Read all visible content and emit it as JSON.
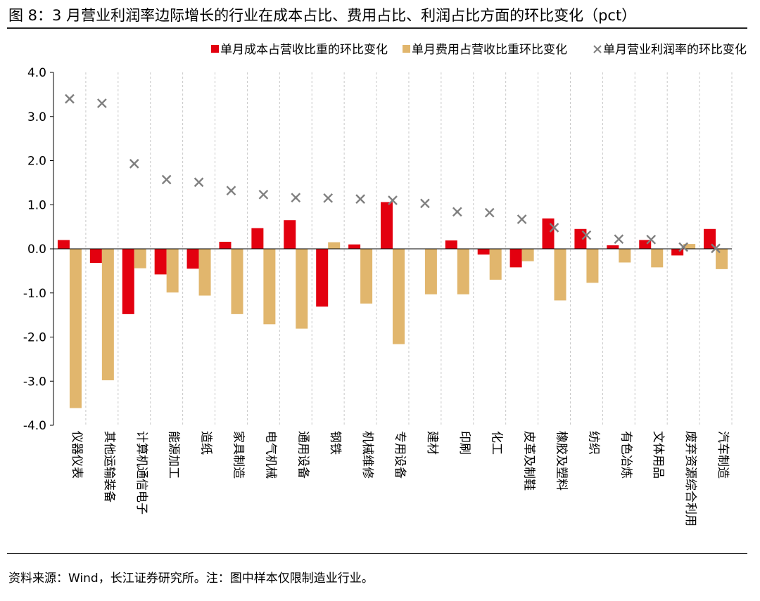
{
  "figure": {
    "title": "图 8：3 月营业利润率边际增长的行业在成本占比、费用占比、利润占比方面的环比变化（pct）",
    "source": "资料来源：Wind，长江证券研究所。注：图中样本仅限制造业行业。"
  },
  "chart_data": {
    "type": "bar",
    "title": "3 月营业利润率边际增长的行业在成本占比、费用占比、利润占比方面的环比变化（pct）",
    "xlabel": "",
    "ylabel": "",
    "ylim": [
      -4.0,
      4.0
    ],
    "yticks": [
      "4.0",
      "3.0",
      "2.0",
      "1.0",
      "0.0",
      "-1.0",
      "-2.0",
      "-3.0",
      "-4.0"
    ],
    "legend_position": "top",
    "categories": [
      "仪器仪表",
      "其他运输装备",
      "计算机通信电子",
      "能源加工",
      "造纸",
      "家具制造",
      "电气机械",
      "通用设备",
      "钢铁",
      "机械维修",
      "专用设备",
      "建材",
      "印刷",
      "化工",
      "皮革及制鞋",
      "橡胶及塑料",
      "纺织",
      "有色冶炼",
      "文体用品",
      "废弃资源综合利用",
      "汽车制造"
    ],
    "series": [
      {
        "name": "单月成本占营收比重的环比变化",
        "type": "bar",
        "color": "#e3000f",
        "values": [
          0.2,
          -0.32,
          -1.48,
          -0.58,
          -0.45,
          0.16,
          0.47,
          0.65,
          -1.31,
          0.1,
          1.06,
          0.0,
          0.19,
          -0.13,
          -0.42,
          0.69,
          0.45,
          0.08,
          0.2,
          -0.15,
          0.45
        ]
      },
      {
        "name": "单月费用占营收比重环比变化",
        "type": "bar",
        "color": "#e1b66d",
        "values": [
          -3.61,
          -2.98,
          -0.44,
          -0.99,
          -1.06,
          -1.48,
          -1.71,
          -1.81,
          0.15,
          -1.24,
          -2.16,
          -1.03,
          -1.03,
          -0.7,
          -0.28,
          -1.17,
          -0.77,
          -0.31,
          -0.42,
          0.11,
          -0.46
        ]
      },
      {
        "name": "单月营业利润率的环比变化",
        "type": "scatter",
        "marker": "x",
        "color": "#7f7f7f",
        "values": [
          3.4,
          3.3,
          1.93,
          1.57,
          1.51,
          1.32,
          1.23,
          1.16,
          1.15,
          1.13,
          1.1,
          1.03,
          0.84,
          0.82,
          0.67,
          0.48,
          0.31,
          0.22,
          0.21,
          0.04,
          0.01
        ]
      }
    ]
  }
}
